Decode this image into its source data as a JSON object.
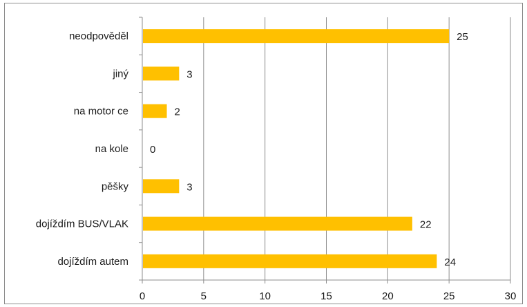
{
  "chart_data": {
    "type": "bar",
    "orientation": "horizontal",
    "categories": [
      "neodpověděl",
      "jiný",
      "na motor ce",
      "na kole",
      "pěšky",
      "dojíždím BUS/VLAK",
      "dojíždím autem"
    ],
    "values": [
      25,
      3,
      2,
      0,
      3,
      22,
      24
    ],
    "data_labels": [
      "25",
      "3",
      "2",
      "0",
      "3",
      "22",
      "24"
    ],
    "xlim": [
      0,
      30
    ],
    "xticks": [
      "0",
      "5",
      "10",
      "15",
      "20",
      "25",
      "30"
    ],
    "grid": "vertical",
    "legend": "none",
    "bar_color": "#ffc000",
    "gridline_color": "#8c8c8c"
  }
}
